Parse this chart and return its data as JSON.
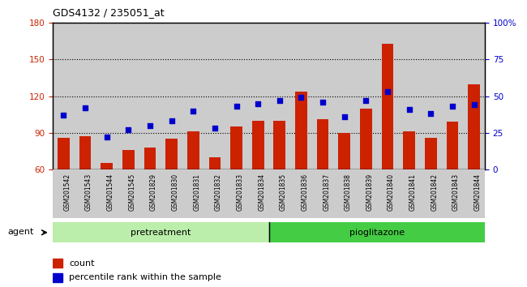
{
  "title": "GDS4132 / 235051_at",
  "samples": [
    "GSM201542",
    "GSM201543",
    "GSM201544",
    "GSM201545",
    "GSM201829",
    "GSM201830",
    "GSM201831",
    "GSM201832",
    "GSM201833",
    "GSM201834",
    "GSM201835",
    "GSM201836",
    "GSM201837",
    "GSM201838",
    "GSM201839",
    "GSM201840",
    "GSM201841",
    "GSM201842",
    "GSM201843",
    "GSM201844"
  ],
  "counts": [
    86,
    87,
    65,
    76,
    78,
    85,
    91,
    70,
    95,
    100,
    100,
    124,
    101,
    90,
    110,
    163,
    91,
    86,
    99,
    130
  ],
  "percentiles": [
    37,
    42,
    22,
    27,
    30,
    33,
    40,
    28,
    43,
    45,
    47,
    49,
    46,
    36,
    47,
    53,
    41,
    38,
    43,
    44
  ],
  "pretreatment_count": 10,
  "pioglitazone_count": 10,
  "ylim_left": [
    60,
    180
  ],
  "ylim_right": [
    0,
    100
  ],
  "yticks_left": [
    60,
    90,
    120,
    150,
    180
  ],
  "yticks_right": [
    0,
    25,
    50,
    75,
    100
  ],
  "yticklabels_right": [
    "0",
    "25",
    "50",
    "75",
    "100%"
  ],
  "bar_color": "#cc2200",
  "dot_color": "#0000cc",
  "pretreatment_color": "#bbeeaa",
  "pioglitazone_color": "#44cc44",
  "grid_color": "#000000",
  "bg_color": "#cccccc",
  "legend_count_label": "count",
  "legend_pct_label": "percentile rank within the sample"
}
